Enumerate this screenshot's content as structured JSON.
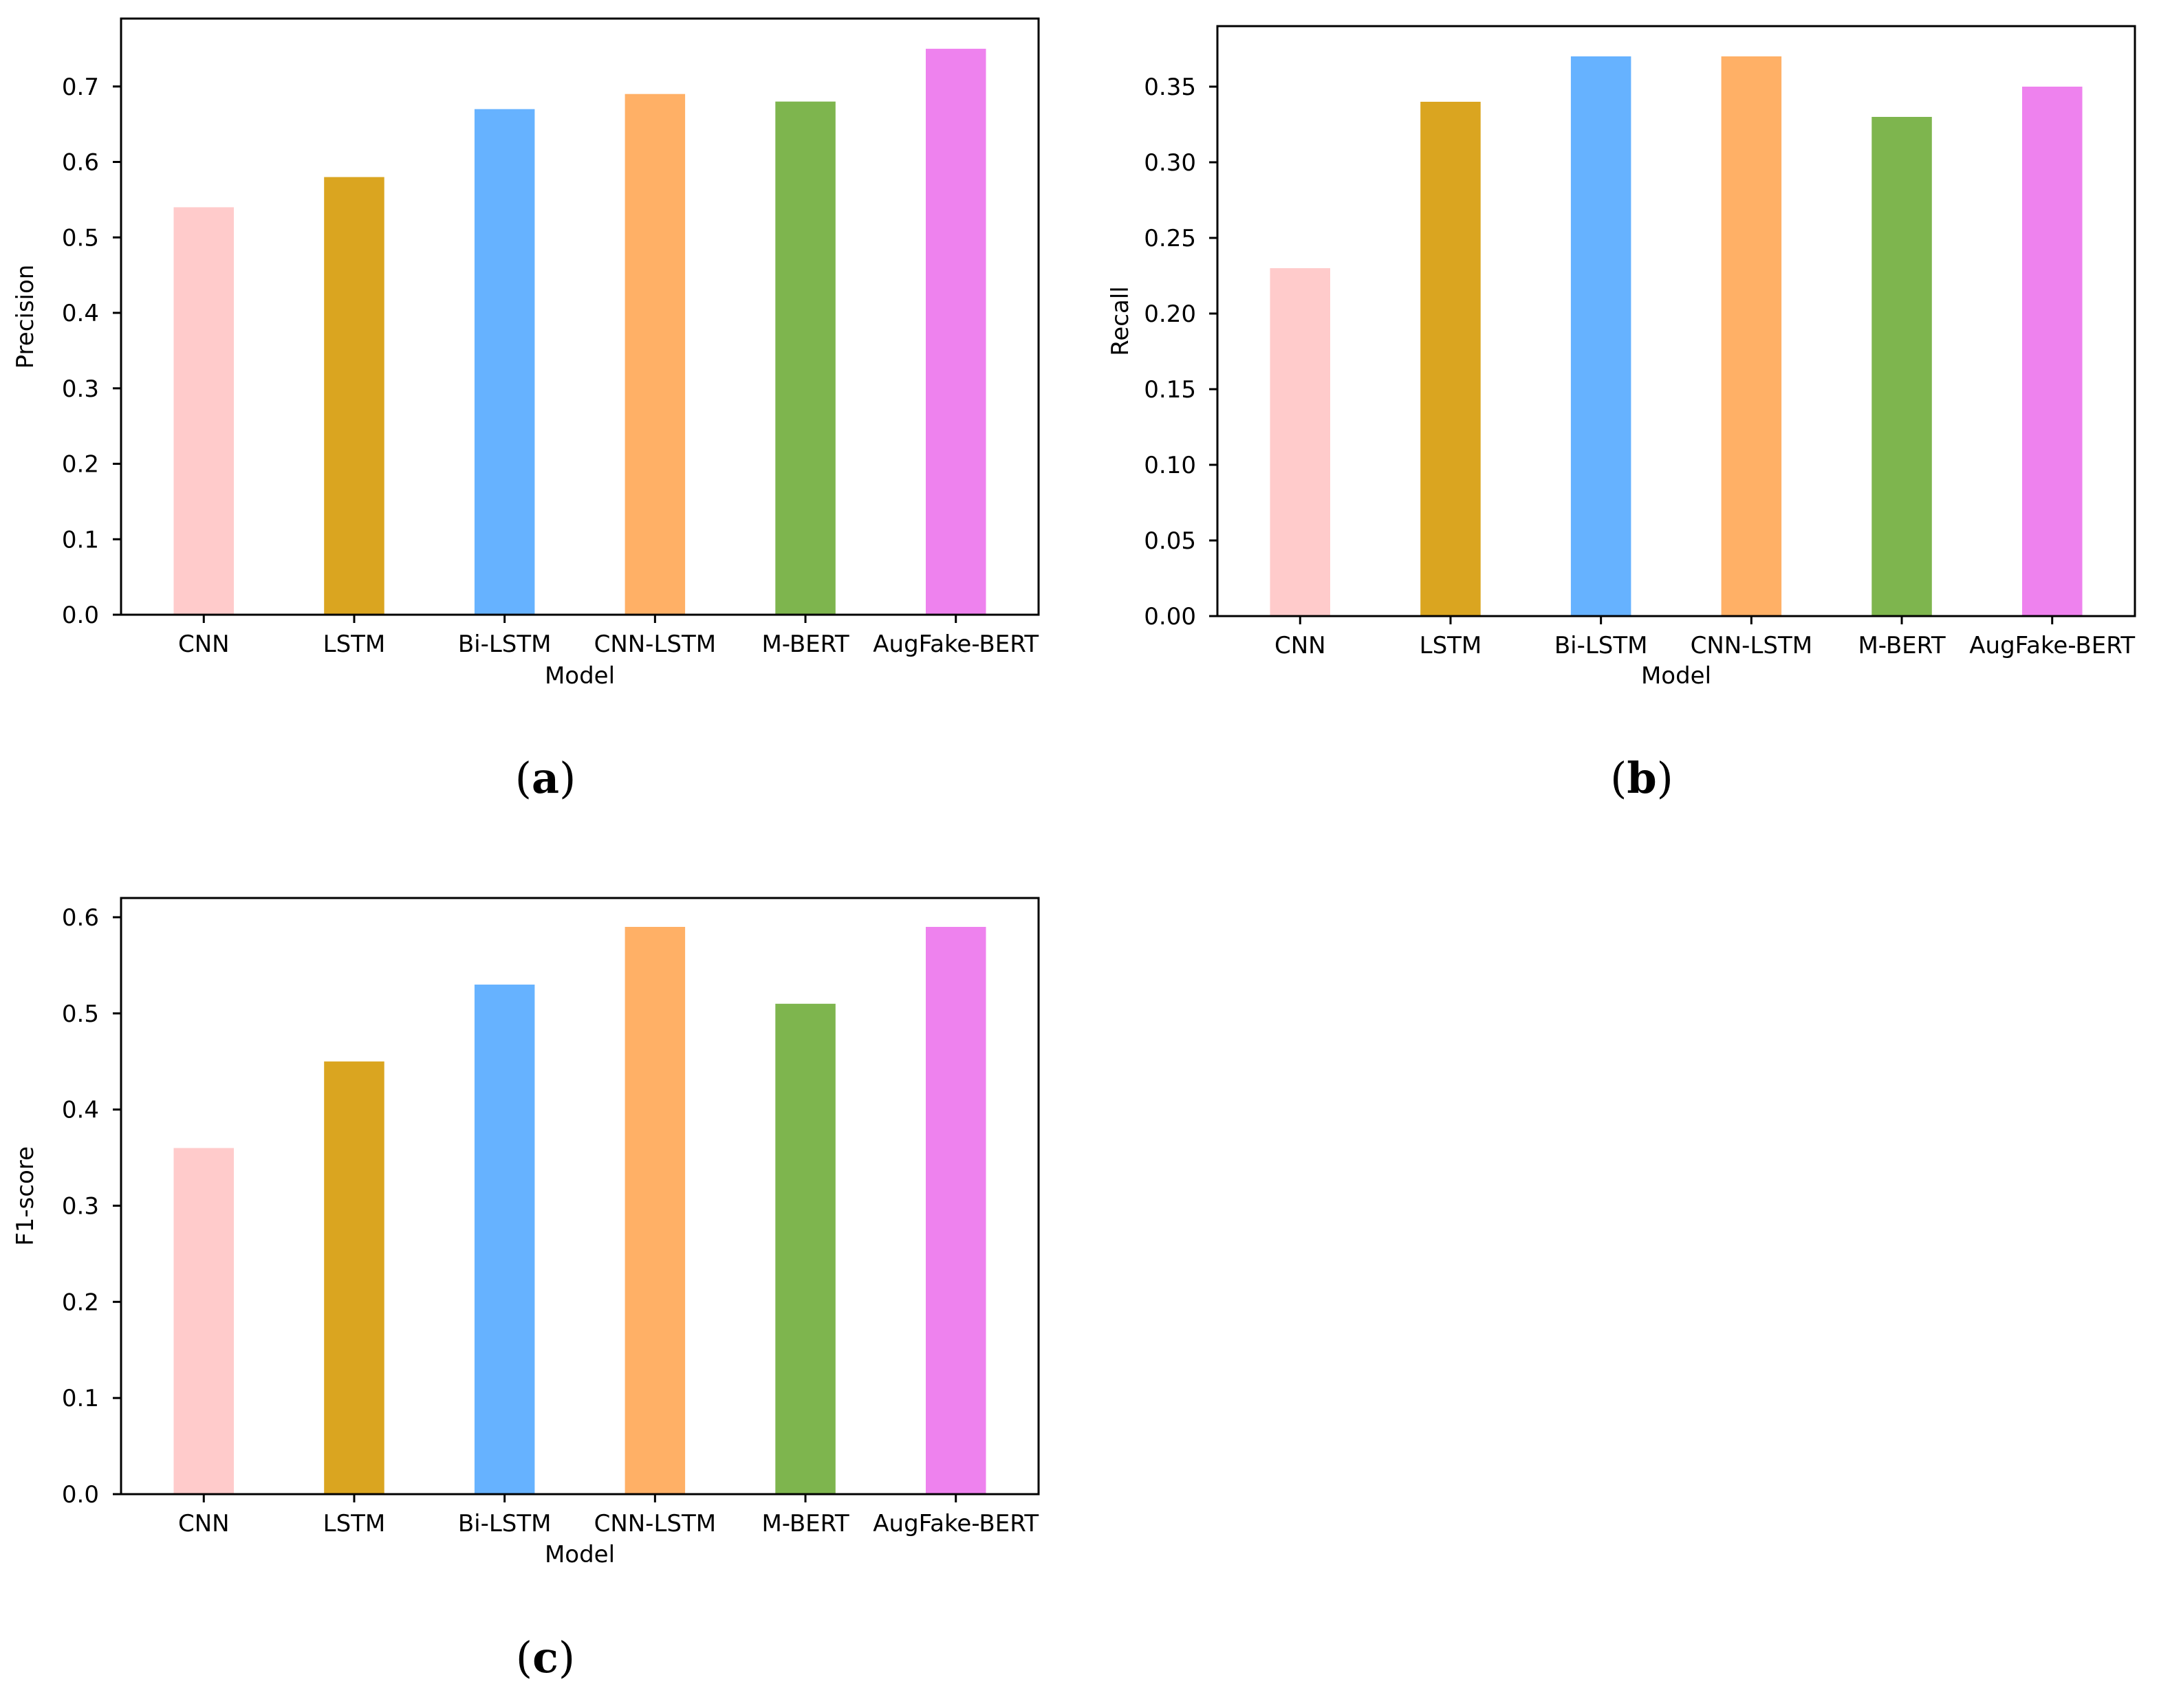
{
  "chart_data": [
    {
      "type": "bar",
      "panel_label": "a",
      "categories": [
        "CNN",
        "LSTM",
        "Bi-LSTM",
        "CNN-LSTM",
        "M-BERT",
        "AugFake-BERT"
      ],
      "values": [
        0.54,
        0.58,
        0.67,
        0.69,
        0.68,
        0.75
      ],
      "xlabel": "Model",
      "ylabel": "Precision",
      "ylim": [
        0,
        0.79
      ],
      "yticks": [
        "0.0",
        "0.1",
        "0.2",
        "0.3",
        "0.4",
        "0.5",
        "0.6",
        "0.7"
      ]
    },
    {
      "type": "bar",
      "panel_label": "b",
      "categories": [
        "CNN",
        "LSTM",
        "Bi-LSTM",
        "CNN-LSTM",
        "M-BERT",
        "AugFake-BERT"
      ],
      "values": [
        0.23,
        0.34,
        0.37,
        0.37,
        0.33,
        0.35
      ],
      "xlabel": "Model",
      "ylabel": "Recall",
      "ylim": [
        0,
        0.39
      ],
      "yticks": [
        "0.00",
        "0.05",
        "0.10",
        "0.15",
        "0.20",
        "0.25",
        "0.30",
        "0.35"
      ]
    },
    {
      "type": "bar",
      "panel_label": "c",
      "categories": [
        "CNN",
        "LSTM",
        "Bi-LSTM",
        "CNN-LSTM",
        "M-BERT",
        "AugFake-BERT"
      ],
      "values": [
        0.36,
        0.45,
        0.53,
        0.59,
        0.51,
        0.59
      ],
      "xlabel": "Model",
      "ylabel": "F1-score",
      "ylim": [
        0,
        0.62
      ],
      "yticks": [
        "0.0",
        "0.1",
        "0.2",
        "0.3",
        "0.4",
        "0.5",
        "0.6"
      ]
    }
  ],
  "colors": [
    "#ffcbcb",
    "#daa520",
    "#66b2ff",
    "#ffb066",
    "#7eb54e",
    "#ee82ee"
  ]
}
